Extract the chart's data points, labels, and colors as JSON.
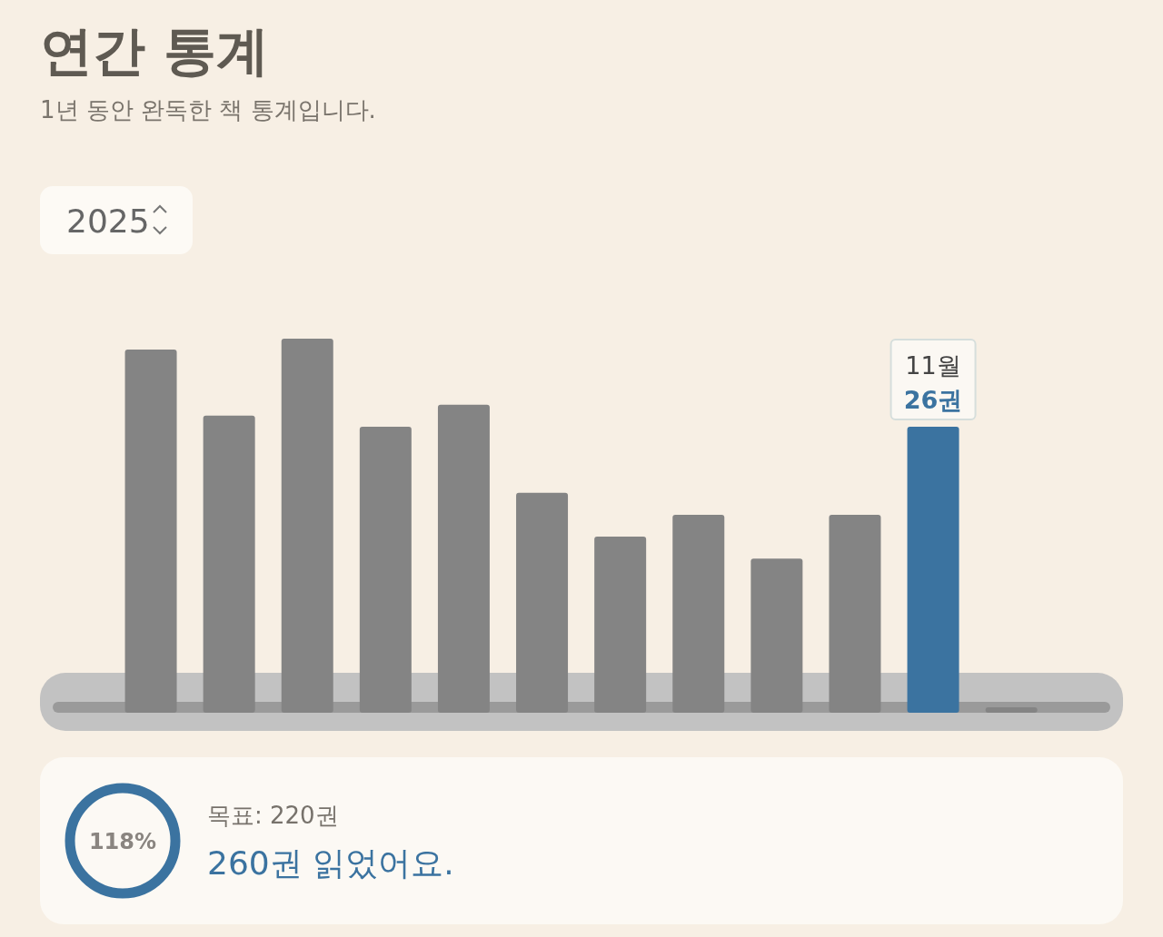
{
  "chart_data": [
    {
      "type": "bar",
      "title": "연간 통계",
      "subtitle": "1년 동안 완독한 책 통계입니다.",
      "categories": [
        null,
        null,
        null,
        null,
        null,
        null,
        null,
        null,
        null,
        null,
        null,
        null
      ],
      "values": [
        33,
        27,
        34,
        26,
        28,
        20,
        16,
        18,
        14,
        18,
        26,
        0.5
      ],
      "colors": [
        "#848484",
        "#848484",
        "#848484",
        "#848484",
        "#848484",
        "#848484",
        "#848484",
        "#848484",
        "#848484",
        "#848484",
        "#3b73a0",
        "#848484"
      ],
      "value_labels": [
        null,
        null,
        null,
        null,
        null,
        null,
        null,
        null,
        null,
        null,
        "26권",
        null
      ],
      "annotations": [
        "2025",
        "11월"
      ]
    },
    {
      "type": "other",
      "color": "#3b73a0",
      "annotations": [
        "118%",
        "목표: 220권",
        "260권 읽었어요."
      ]
    }
  ]
}
